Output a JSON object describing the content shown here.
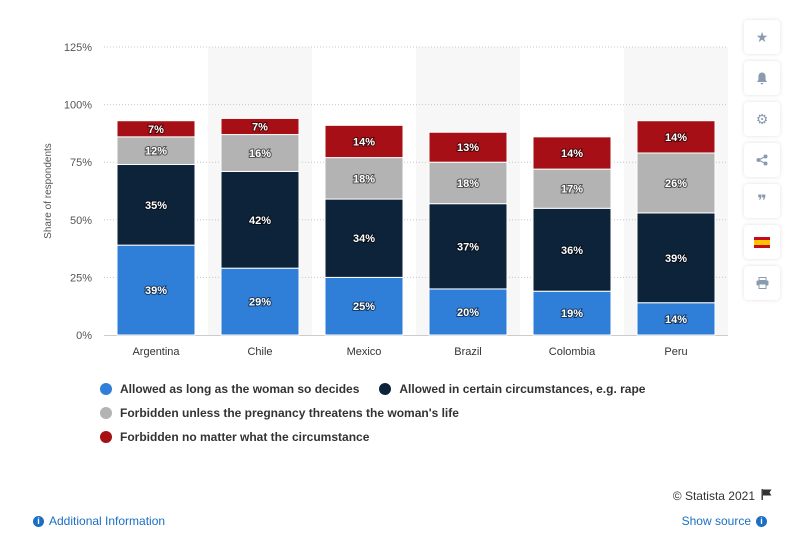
{
  "chart_data": {
    "type": "bar",
    "stacked": true,
    "categories": [
      "Argentina",
      "Chile",
      "Mexico",
      "Brazil",
      "Colombia",
      "Peru"
    ],
    "series": [
      {
        "name": "Allowed as long as the woman so decides",
        "color": "#2f7ed8",
        "values": [
          39,
          29,
          25,
          20,
          19,
          14
        ],
        "labels": [
          "39%",
          "29%",
          "25%",
          "20%",
          "19%",
          "14%"
        ]
      },
      {
        "name": "Allowed in certain circumstances, e.g. rape",
        "color": "#0d233a",
        "values": [
          35,
          42,
          34,
          37,
          36,
          39
        ],
        "labels": [
          "35%",
          "42%",
          "34%",
          "37%",
          "36%",
          "39%"
        ]
      },
      {
        "name": "Forbidden unless the pregnancy threatens the woman's life",
        "color": "#b3b3b3",
        "values": [
          12,
          16,
          18,
          18,
          17,
          26
        ],
        "labels": [
          "12%",
          "16%",
          "18%",
          "18%",
          "17%",
          "26%"
        ]
      },
      {
        "name": "Forbidden no matter what the circumstance",
        "color": "#a50f15",
        "values": [
          7,
          7,
          14,
          13,
          14,
          14
        ],
        "labels": [
          "7%",
          "7%",
          "14%",
          "13%",
          "14%",
          "14%"
        ]
      }
    ],
    "ylabel": "Share of respondents",
    "ylim": [
      0,
      125
    ],
    "yticks": [
      "0%",
      "25%",
      "50%",
      "75%",
      "100%",
      "125%"
    ],
    "grid": true,
    "legend_position": "bottom"
  },
  "footer": {
    "copyright": "© Statista 2021",
    "additional_info": "Additional Information",
    "show_source": "Show source"
  },
  "sidebar": {
    "icons": [
      "star-icon",
      "bell-icon",
      "gear-icon",
      "share-icon",
      "quote-icon",
      "flag-spain-icon",
      "print-icon"
    ]
  }
}
